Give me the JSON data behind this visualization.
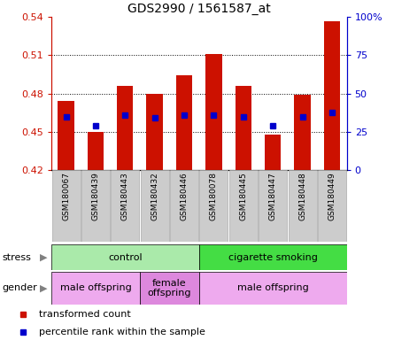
{
  "title": "GDS2990 / 1561587_at",
  "samples": [
    "GSM180067",
    "GSM180439",
    "GSM180443",
    "GSM180432",
    "GSM180446",
    "GSM180078",
    "GSM180445",
    "GSM180447",
    "GSM180448",
    "GSM180449"
  ],
  "bar_values": [
    0.474,
    0.45,
    0.486,
    0.48,
    0.494,
    0.511,
    0.486,
    0.448,
    0.479,
    0.537
  ],
  "bar_base": 0.42,
  "blue_dot_values": [
    0.462,
    0.455,
    0.463,
    0.461,
    0.463,
    0.463,
    0.462,
    0.455,
    0.462,
    0.465
  ],
  "ylim": [
    0.42,
    0.54
  ],
  "yticks_left": [
    0.42,
    0.45,
    0.48,
    0.51,
    0.54
  ],
  "ytick_labels_left": [
    "0.42",
    "0.45",
    "0.48",
    "0.51",
    "0.54"
  ],
  "yticks_right_vals": [
    0,
    25,
    50,
    75,
    100
  ],
  "ytick_labels_right": [
    "0",
    "25",
    "50",
    "75",
    "100%"
  ],
  "bar_color": "#cc1100",
  "dot_color": "#0000cc",
  "stress_groups": [
    {
      "label": "control",
      "start": 0,
      "end": 5,
      "color": "#aaeaaa"
    },
    {
      "label": "cigarette smoking",
      "start": 5,
      "end": 10,
      "color": "#44dd44"
    }
  ],
  "gender_groups": [
    {
      "label": "male offspring",
      "start": 0,
      "end": 3,
      "color": "#eeaaee"
    },
    {
      "label": "female\noffspring",
      "start": 3,
      "end": 5,
      "color": "#dd88dd"
    },
    {
      "label": "male offspring",
      "start": 5,
      "end": 10,
      "color": "#eeaaee"
    }
  ],
  "tick_label_bg": "#cccccc",
  "tick_label_edge": "#aaaaaa"
}
